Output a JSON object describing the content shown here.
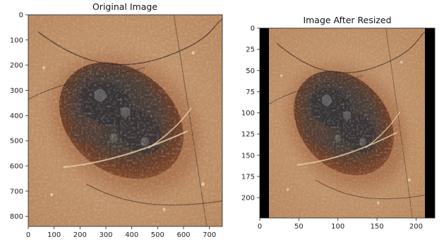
{
  "panels": [
    {
      "title": "Original Image",
      "x_ticks": [
        "0",
        "100",
        "200",
        "300",
        "400",
        "500",
        "600",
        "700"
      ],
      "y_ticks": [
        "0",
        "100",
        "200",
        "300",
        "400",
        "500",
        "600",
        "700",
        "800"
      ],
      "x_range": [
        0,
        750
      ],
      "y_range": [
        0,
        840
      ],
      "x_tick_values": [
        0,
        100,
        200,
        300,
        400,
        500,
        600,
        700
      ],
      "y_tick_values": [
        0,
        100,
        200,
        300,
        400,
        500,
        600,
        700,
        800
      ],
      "content": "dermoscopy-lesion"
    },
    {
      "title": "Image After Resized",
      "x_ticks": [
        "0",
        "50",
        "100",
        "150",
        "200"
      ],
      "y_ticks": [
        "0",
        "25",
        "50",
        "75",
        "100",
        "125",
        "150",
        "175",
        "200"
      ],
      "x_range": [
        0,
        224
      ],
      "y_range": [
        0,
        224
      ],
      "x_tick_values": [
        0,
        50,
        100,
        150,
        200
      ],
      "y_tick_values": [
        0,
        25,
        50,
        75,
        100,
        125,
        150,
        175,
        200
      ],
      "content": "dermoscopy-lesion-letterboxed"
    }
  ],
  "colors": {
    "skin": "#c79a6e",
    "lesion_dark": "#4a3a33",
    "lesion_edge": "#8a4a2a",
    "padding": "#000000"
  }
}
